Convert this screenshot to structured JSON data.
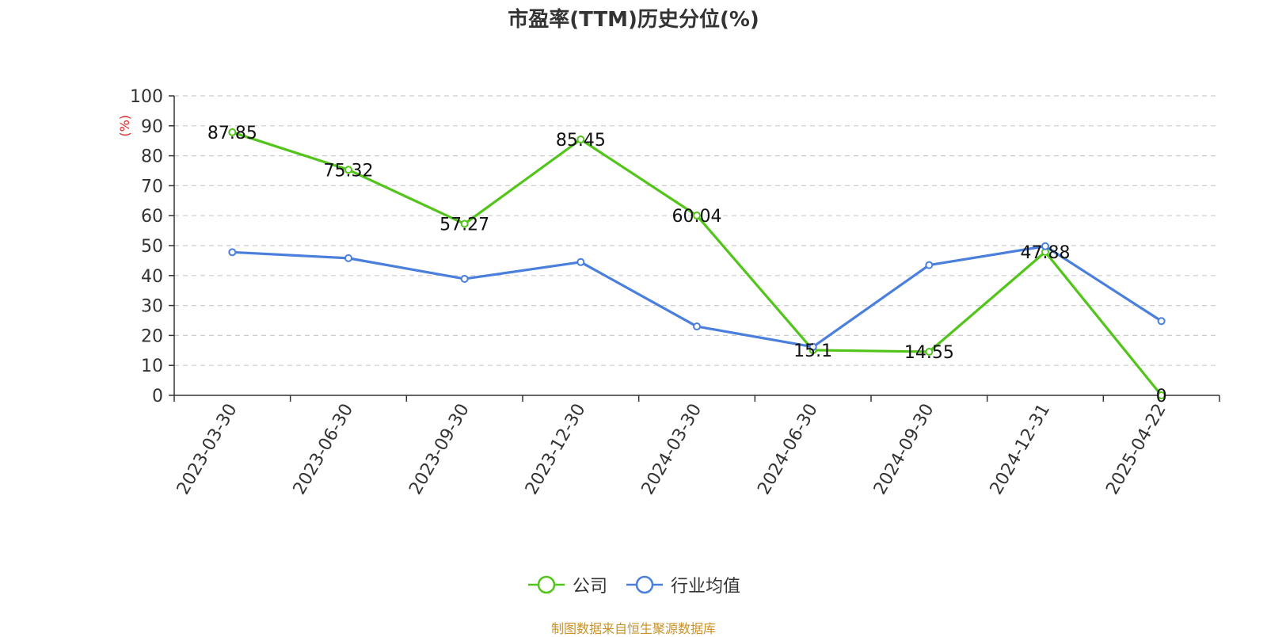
{
  "chart_data": {
    "type": "line",
    "title": "市盈率(TTM)历史分位(%)",
    "ylabel": "(%)",
    "ylim": [
      0,
      100
    ],
    "yticks": [
      0,
      10,
      20,
      30,
      40,
      50,
      60,
      70,
      80,
      90,
      100
    ],
    "categories": [
      "2023-03-30",
      "2023-06-30",
      "2023-09-30",
      "2023-12-30",
      "2024-03-30",
      "2024-06-30",
      "2024-09-30",
      "2024-12-31",
      "2025-04-22"
    ],
    "grid": true,
    "legend_position": "bottom",
    "series": [
      {
        "name": "公司",
        "color": "#52c41a",
        "values": [
          87.85,
          75.32,
          57.27,
          85.45,
          60.04,
          15.1,
          14.55,
          47.88,
          0
        ],
        "labels_shown": true
      },
      {
        "name": "行业均值",
        "color": "#4a7fdb",
        "values": [
          47.8,
          45.8,
          38.9,
          44.5,
          23.0,
          16.2,
          43.5,
          49.8,
          24.8
        ],
        "labels_shown": false
      }
    ],
    "source": "制图数据来自恒生聚源数据库"
  }
}
